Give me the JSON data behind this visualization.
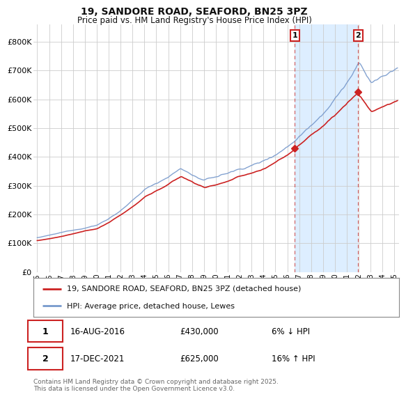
{
  "title": "19, SANDORE ROAD, SEAFORD, BN25 3PZ",
  "subtitle": "Price paid vs. HM Land Registry's House Price Index (HPI)",
  "legend_line1": "19, SANDORE ROAD, SEAFORD, BN25 3PZ (detached house)",
  "legend_line2": "HPI: Average price, detached house, Lewes",
  "annotation1_label": "1",
  "annotation2_label": "2",
  "annotation1_date": "16-AUG-2016",
  "annotation1_price": "£430,000",
  "annotation1_hpi": "6% ↓ HPI",
  "annotation2_date": "17-DEC-2021",
  "annotation2_price": "£625,000",
  "annotation2_hpi": "16% ↑ HPI",
  "footer": "Contains HM Land Registry data © Crown copyright and database right 2025.\nThis data is licensed under the Open Government Licence v3.0.",
  "plot_bg_color": "#ffffff",
  "highlight_color": "#ddeeff",
  "red_line_color": "#cc2222",
  "blue_line_color": "#7799cc",
  "grid_color": "#cccccc",
  "sale1_t": 2016.625,
  "sale2_t": 2021.958,
  "sale1_price": 430000,
  "sale2_price": 625000,
  "ylim": [
    0,
    860000
  ],
  "yticks": [
    0,
    100000,
    200000,
    300000,
    400000,
    500000,
    600000,
    700000,
    800000
  ],
  "start_year": 1995,
  "end_year": 2025,
  "fig_width": 6.0,
  "fig_height": 5.6
}
